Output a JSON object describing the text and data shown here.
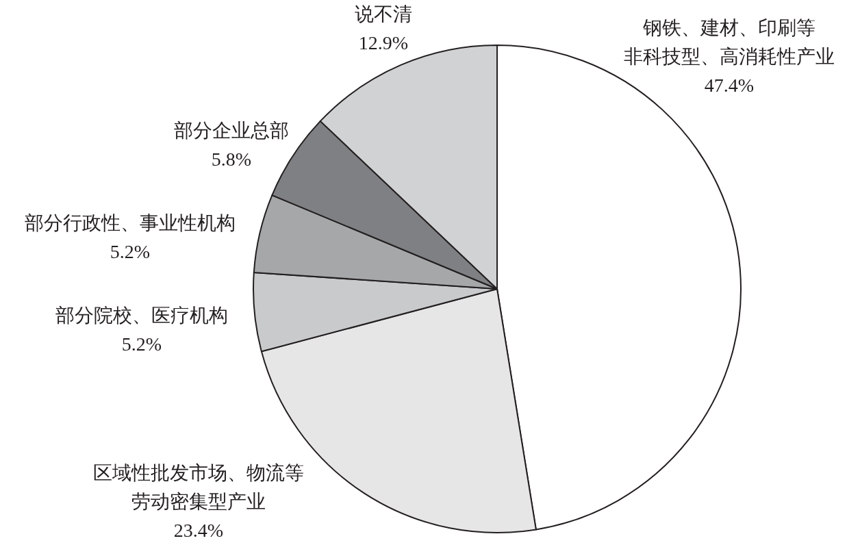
{
  "chart_data": {
    "type": "pie",
    "categories": [
      "钢铁、建材、印刷等非科技型、高消耗性产业",
      "区域性批发市场、物流等劳动密集型产业",
      "部分院校、医疗机构",
      "部分行政性、事业性机构",
      "部分企业总部",
      "说不清"
    ],
    "values": [
      47.4,
      23.4,
      5.2,
      5.2,
      5.8,
      12.9
    ],
    "value_labels": [
      "47.4%",
      "23.4%",
      "5.2%",
      "5.2%",
      "5.8%",
      "12.9%"
    ],
    "colors": [
      "#ffffff",
      "#e6e6e7",
      "#c9cacc",
      "#a6a7a9",
      "#7f8083",
      "#d1d2d4"
    ]
  }
}
